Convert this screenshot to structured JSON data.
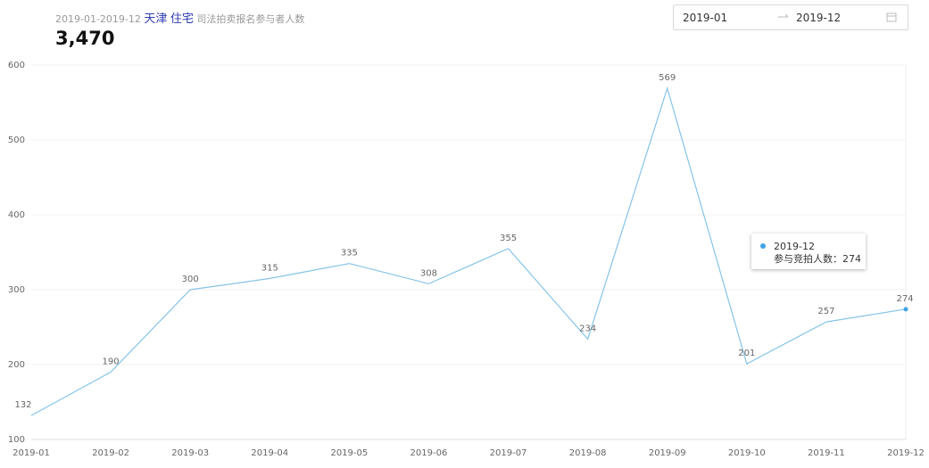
{
  "header": {
    "period": "2019-01-2019-12",
    "city": "天津",
    "category": "住宅",
    "metric": "司法拍卖报名参与者人数",
    "total": "3,470"
  },
  "date_range": {
    "start": "2019-01",
    "end": "2019-12"
  },
  "chart_data": {
    "type": "line",
    "categories": [
      "2019-01",
      "2019-02",
      "2019-03",
      "2019-04",
      "2019-05",
      "2019-06",
      "2019-07",
      "2019-08",
      "2019-09",
      "2019-10",
      "2019-11",
      "2019-12"
    ],
    "values": [
      132,
      190,
      300,
      315,
      335,
      308,
      355,
      234,
      569,
      201,
      257,
      274
    ],
    "color": "#86c4e8",
    "marker_color": "#3ea3e6",
    "ylim": [
      100,
      600
    ],
    "yticks": [
      100,
      200,
      300,
      400,
      500,
      600
    ],
    "grid": true,
    "tooltip": {
      "index": 11,
      "text": "参与竞拍人数：274"
    }
  }
}
